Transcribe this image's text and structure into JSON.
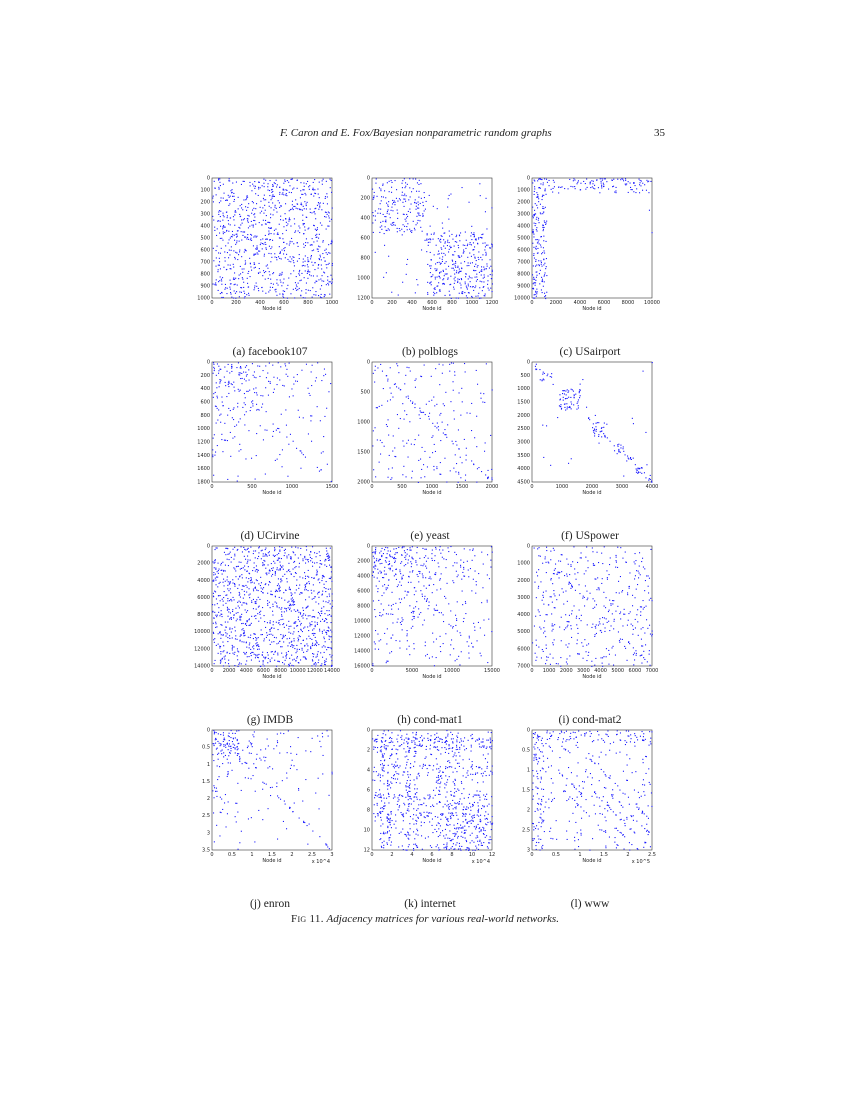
{
  "page": {
    "running_title": "F. Caron and E. Fox/Bayesian nonparametric random graphs",
    "page_number": "35"
  },
  "figure": {
    "label": "Fig 11.",
    "caption": "Adjacency matrices for various real-world networks."
  },
  "colors": {
    "edge": "#1a1aff",
    "background": "#ffffff"
  },
  "panels": [
    {
      "caption": "(a) facebook107",
      "pattern": "dense-uniform",
      "density": 0.55,
      "xlabel": "Node id",
      "ylabel": "",
      "scale_note": "",
      "xticks": [
        "0",
        "200",
        "400",
        "600",
        "800",
        "1000"
      ],
      "yticks": [
        "0",
        "100",
        "200",
        "300",
        "400",
        "500",
        "600",
        "700",
        "800",
        "900",
        "1000"
      ]
    },
    {
      "caption": "(b) polblogs",
      "pattern": "two-blocks",
      "density": 0.5,
      "xlabel": "Node id",
      "ylabel": "",
      "scale_note": "",
      "xticks": [
        "0",
        "200",
        "400",
        "600",
        "800",
        "1000",
        "1200"
      ],
      "yticks": [
        "0",
        "200",
        "400",
        "600",
        "800",
        "1000",
        "1200"
      ]
    },
    {
      "caption": "(c) USairport",
      "pattern": "hub-corner",
      "density": 0.5,
      "xlabel": "Node id",
      "ylabel": "",
      "scale_note": "",
      "xticks": [
        "0",
        "2000",
        "4000",
        "6000",
        "8000",
        "10000"
      ],
      "yticks": [
        "0",
        "1000",
        "2000",
        "3000",
        "4000",
        "5000",
        "6000",
        "7000",
        "8000",
        "9000",
        "10000"
      ]
    },
    {
      "caption": "(d) UCirvine",
      "pattern": "decay",
      "density": 0.35,
      "xlabel": "Node id",
      "ylabel": "",
      "scale_note": "",
      "xticks": [
        "0",
        "500",
        "1000",
        "1500"
      ],
      "yticks": [
        "0",
        "200",
        "400",
        "600",
        "800",
        "1000",
        "1200",
        "1400",
        "1600",
        "1800"
      ]
    },
    {
      "caption": "(e) yeast",
      "pattern": "sparse-diagonal",
      "density": 0.12,
      "xlabel": "Node id",
      "ylabel": "",
      "scale_note": "",
      "xticks": [
        "0",
        "500",
        "1000",
        "1500",
        "2000"
      ],
      "yticks": [
        "0",
        "500",
        "1000",
        "1500",
        "2000"
      ]
    },
    {
      "caption": "(f) USpower",
      "pattern": "block-diagonal",
      "density": 0.4,
      "xlabel": "Node id",
      "ylabel": "",
      "scale_note": "",
      "xticks": [
        "0",
        "1000",
        "2000",
        "3000",
        "4000"
      ],
      "yticks": [
        "0",
        "500",
        "1000",
        "1500",
        "2000",
        "2500",
        "3000",
        "3500",
        "4000",
        "4500"
      ]
    },
    {
      "caption": "(g) IMDB",
      "pattern": "dense-uniform",
      "density": 0.75,
      "xlabel": "Node id",
      "ylabel": "",
      "scale_note": "",
      "xticks": [
        "0",
        "2000",
        "4000",
        "6000",
        "8000",
        "10000",
        "12000",
        "14000"
      ],
      "yticks": [
        "0",
        "2000",
        "4000",
        "6000",
        "8000",
        "10000",
        "12000",
        "14000"
      ]
    },
    {
      "caption": "(h) cond-mat1",
      "pattern": "decay-diagonal",
      "density": 0.45,
      "xlabel": "Node id",
      "ylabel": "",
      "scale_note": "",
      "xticks": [
        "0",
        "5000",
        "10000",
        "15000"
      ],
      "yticks": [
        "0",
        "2000",
        "4000",
        "6000",
        "8000",
        "10000",
        "12000",
        "14000",
        "16000"
      ]
    },
    {
      "caption": "(i) cond-mat2",
      "pattern": "uniform-diagonal",
      "density": 0.3,
      "xlabel": "Node id",
      "ylabel": "",
      "scale_note": "",
      "xticks": [
        "0",
        "1000",
        "2000",
        "3000",
        "4000",
        "5000",
        "6000",
        "7000"
      ],
      "yticks": [
        "0",
        "1000",
        "2000",
        "3000",
        "4000",
        "5000",
        "6000",
        "7000"
      ]
    },
    {
      "caption": "(j) enron",
      "pattern": "corner-diagonal",
      "density": 0.45,
      "xlabel": "Node id",
      "ylabel": "",
      "scale_note": "x 10^4",
      "xticks": [
        "0",
        "0.5",
        "1",
        "1.5",
        "2",
        "2.5",
        "3"
      ],
      "yticks": [
        "0",
        "0.5",
        "1",
        "1.5",
        "2",
        "2.5",
        "3",
        "3.5"
      ]
    },
    {
      "caption": "(k) internet",
      "pattern": "blocky",
      "density": 0.5,
      "xlabel": "Node id",
      "ylabel": "",
      "scale_note": "x 10^4",
      "xticks": [
        "0",
        "2",
        "4",
        "6",
        "8",
        "10",
        "12"
      ],
      "yticks": [
        "0",
        "2",
        "4",
        "6",
        "8",
        "10",
        "12"
      ]
    },
    {
      "caption": "(l) www",
      "pattern": "multi-diagonal",
      "density": 0.45,
      "xlabel": "Node id",
      "ylabel": "",
      "scale_note": "x 10^5",
      "xticks": [
        "0",
        "0.5",
        "1",
        "1.5",
        "2",
        "2.5"
      ],
      "yticks": [
        "0",
        "0.5",
        "1",
        "1.5",
        "2",
        "2.5",
        "3"
      ]
    }
  ]
}
